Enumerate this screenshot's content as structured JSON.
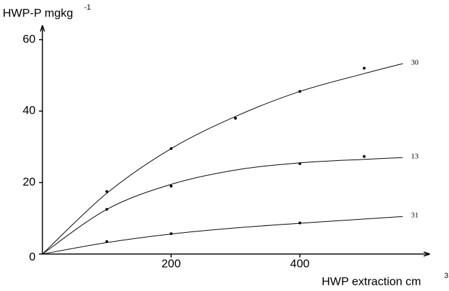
{
  "chart_data": {
    "type": "line",
    "y_label": "HWP-P mgkg",
    "y_label_sup": "-1",
    "x_label": "HWP extraction cm",
    "x_label_sup": "3",
    "xlim": [
      0,
      602
    ],
    "ylim": [
      0,
      64
    ],
    "xticks": [
      200,
      400
    ],
    "yticks": [
      0,
      20,
      40,
      60
    ],
    "color": "#000000",
    "series": [
      {
        "name": "30",
        "x": [
          100,
          200,
          300,
          400,
          500
        ],
        "values": [
          17.5,
          29.5,
          38,
          45.5,
          52
        ],
        "fit_x": [
          0,
          100,
          200,
          300,
          400,
          500,
          560
        ],
        "fit_values": [
          0,
          17,
          29.5,
          38.5,
          45.5,
          50.5,
          53.3
        ]
      },
      {
        "name": "13",
        "x": [
          100,
          200,
          400,
          500
        ],
        "values": [
          12.5,
          19,
          25.3,
          27.3
        ],
        "fit_x": [
          0,
          100,
          200,
          300,
          400,
          500,
          560
        ],
        "fit_values": [
          0,
          12.5,
          19.5,
          23.5,
          25.5,
          26.5,
          27
        ]
      },
      {
        "name": "31",
        "x": [
          100,
          200,
          400
        ],
        "values": [
          3.5,
          5.7,
          8.7
        ],
        "fit_x": [
          0,
          100,
          200,
          300,
          400,
          500,
          560
        ],
        "fit_values": [
          0,
          3.2,
          5.6,
          7.3,
          8.6,
          9.8,
          10.5
        ]
      }
    ]
  }
}
